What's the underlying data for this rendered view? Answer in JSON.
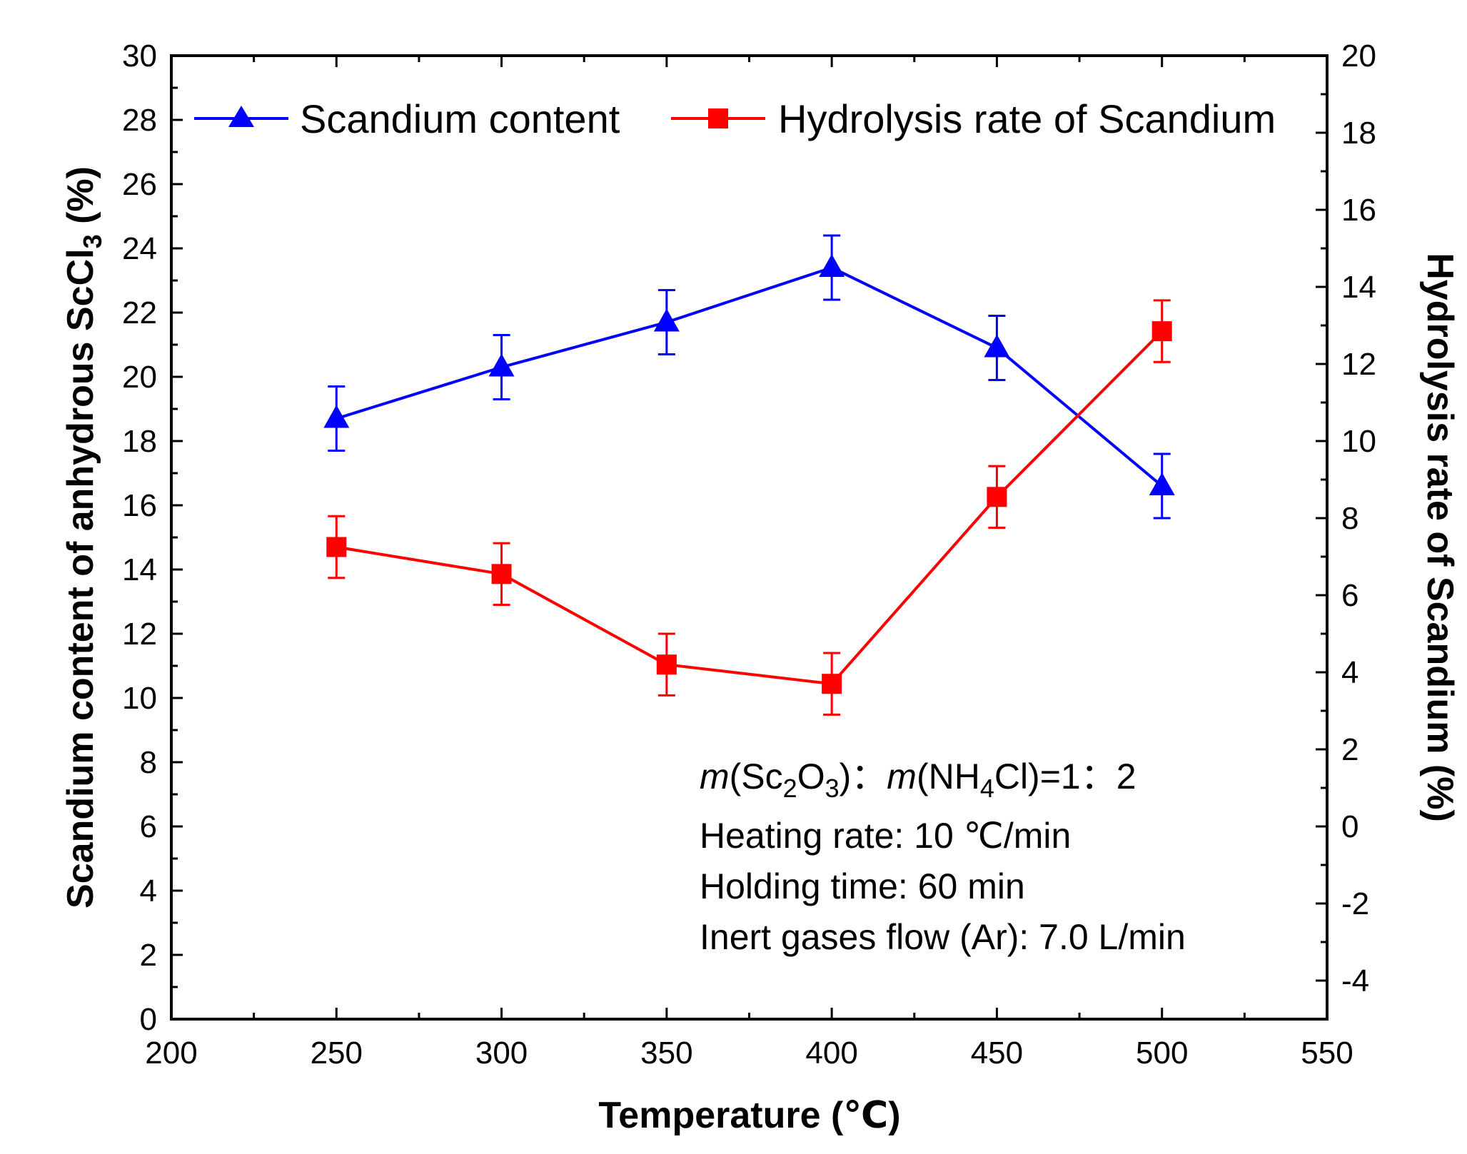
{
  "chart_data": {
    "type": "line",
    "x_label": "Temperature (℃)",
    "y_label_left_main": "Scandium content of anhydrous ScCl",
    "y_label_left_sub": "3",
    "y_label_left_tail": " (%)",
    "y_label_right": "Hydrolysis rate of Scandium (%)",
    "x_range": [
      200,
      550
    ],
    "x_ticks": [
      200,
      250,
      300,
      350,
      400,
      450,
      500,
      550
    ],
    "y_left_range": [
      0,
      30
    ],
    "y_left_ticks": [
      0,
      2,
      4,
      6,
      8,
      10,
      12,
      14,
      16,
      18,
      20,
      22,
      24,
      26,
      28,
      30
    ],
    "y_right_range": [
      -5,
      20
    ],
    "y_right_ticks": [
      -4,
      -2,
      0,
      2,
      4,
      6,
      8,
      10,
      12,
      14,
      16,
      18,
      20
    ],
    "series": [
      {
        "name": "Scandium content",
        "axis": "left",
        "color": "#0000ff",
        "marker": "triangle",
        "x": [
          250,
          300,
          350,
          400,
          450,
          500
        ],
        "y": [
          18.7,
          20.3,
          21.7,
          23.4,
          20.9,
          16.6
        ],
        "error": [
          1.0,
          1.0,
          1.0,
          1.0,
          1.0,
          1.0
        ]
      },
      {
        "name": "Hydrolysis rate of Scandium",
        "axis": "right",
        "color": "#ff0000",
        "marker": "square",
        "x": [
          250,
          300,
          350,
          400,
          450,
          500
        ],
        "y": [
          7.25,
          6.55,
          4.2,
          3.7,
          8.55,
          12.85
        ],
        "error": [
          0.8,
          0.8,
          0.8,
          0.8,
          0.8,
          0.8
        ]
      }
    ],
    "annotation": {
      "line1_parts": [
        "m",
        "(Sc",
        "2",
        "O",
        "3",
        ")：",
        "m",
        "(NH",
        "4",
        "Cl)=1：2"
      ],
      "line2": "Heating rate: 10 ℃/min",
      "line3": "Holding time: 60 min",
      "line4": "Inert gases flow (Ar): 7.0 L/min"
    },
    "legend_position": "top"
  }
}
